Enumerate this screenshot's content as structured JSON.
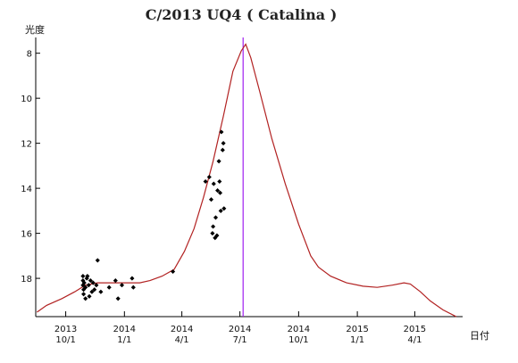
{
  "chart_data": {
    "type": "scatter",
    "title": "C/2013 UQ4 ( Catalina )",
    "ylabel": "光度",
    "xlabel": "日付",
    "y_inverted": true,
    "ylim": [
      19.7,
      7.3
    ],
    "xlim": [
      "2013-08-15",
      "2015-06-15"
    ],
    "y_ticks": [
      8,
      10,
      12,
      14,
      16,
      18
    ],
    "x_ticks": [
      {
        "date": "2013-10-01",
        "year": "2013",
        "md": "10/1"
      },
      {
        "date": "2014-01-01",
        "year": "2014",
        "md": "1/1"
      },
      {
        "date": "2014-04-01",
        "year": "2014",
        "md": "4/1"
      },
      {
        "date": "2014-07-01",
        "year": "2014",
        "md": "7/1"
      },
      {
        "date": "2014-10-01",
        "year": "2014",
        "md": "10/1"
      },
      {
        "date": "2015-01-01",
        "year": "2015",
        "md": "1/1"
      },
      {
        "date": "2015-04-01",
        "year": "2015",
        "md": "4/1"
      }
    ],
    "perihelion_marker": "2014-07-06",
    "series": [
      {
        "kind": "observations",
        "points": [
          {
            "x": "2013-10-28",
            "y": 17.9
          },
          {
            "x": "2013-10-28",
            "y": 18.1
          },
          {
            "x": "2013-10-28",
            "y": 18.3
          },
          {
            "x": "2013-10-29",
            "y": 18.5
          },
          {
            "x": "2013-10-29",
            "y": 18.7
          },
          {
            "x": "2013-10-30",
            "y": 18.2
          },
          {
            "x": "2013-11-01",
            "y": 18.4
          },
          {
            "x": "2013-11-01",
            "y": 18.9
          },
          {
            "x": "2013-11-03",
            "y": 18.0
          },
          {
            "x": "2013-11-04",
            "y": 17.9
          },
          {
            "x": "2013-11-06",
            "y": 18.3
          },
          {
            "x": "2013-11-07",
            "y": 18.8
          },
          {
            "x": "2013-11-09",
            "y": 18.1
          },
          {
            "x": "2013-11-11",
            "y": 18.6
          },
          {
            "x": "2013-11-13",
            "y": 18.2
          },
          {
            "x": "2013-11-15",
            "y": 18.5
          },
          {
            "x": "2013-11-18",
            "y": 18.3
          },
          {
            "x": "2013-11-20",
            "y": 17.2
          },
          {
            "x": "2013-11-25",
            "y": 18.6
          },
          {
            "x": "2013-12-08",
            "y": 18.4
          },
          {
            "x": "2013-12-18",
            "y": 18.1
          },
          {
            "x": "2013-12-22",
            "y": 18.9
          },
          {
            "x": "2013-12-28",
            "y": 18.3
          },
          {
            "x": "2014-01-13",
            "y": 18.0
          },
          {
            "x": "2014-01-15",
            "y": 18.4
          },
          {
            "x": "2014-03-18",
            "y": 17.7
          },
          {
            "x": "2014-05-08",
            "y": 13.7
          },
          {
            "x": "2014-05-14",
            "y": 13.5
          },
          {
            "x": "2014-05-17",
            "y": 14.5
          },
          {
            "x": "2014-05-19",
            "y": 16.0
          },
          {
            "x": "2014-05-20",
            "y": 15.7
          },
          {
            "x": "2014-05-21",
            "y": 13.8
          },
          {
            "x": "2014-05-23",
            "y": 16.2
          },
          {
            "x": "2014-05-24",
            "y": 15.3
          },
          {
            "x": "2014-05-26",
            "y": 16.1
          },
          {
            "x": "2014-05-27",
            "y": 14.1
          },
          {
            "x": "2014-05-29",
            "y": 12.8
          },
          {
            "x": "2014-05-30",
            "y": 13.7
          },
          {
            "x": "2014-05-31",
            "y": 14.2
          },
          {
            "x": "2014-06-01",
            "y": 15.0
          },
          {
            "x": "2014-06-02",
            "y": 11.5
          },
          {
            "x": "2014-06-04",
            "y": 12.3
          },
          {
            "x": "2014-06-05",
            "y": 12.0
          },
          {
            "x": "2014-06-06",
            "y": 14.9
          }
        ]
      },
      {
        "kind": "prediction_curve",
        "points": [
          {
            "x": "2013-08-17",
            "y": 19.5
          },
          {
            "x": "2013-09-01",
            "y": 19.2
          },
          {
            "x": "2013-09-25",
            "y": 18.9
          },
          {
            "x": "2013-10-15",
            "y": 18.6
          },
          {
            "x": "2013-11-01",
            "y": 18.3
          },
          {
            "x": "2013-11-20",
            "y": 18.2
          },
          {
            "x": "2013-12-15",
            "y": 18.2
          },
          {
            "x": "2014-01-05",
            "y": 18.2
          },
          {
            "x": "2014-01-25",
            "y": 18.2
          },
          {
            "x": "2014-02-10",
            "y": 18.1
          },
          {
            "x": "2014-03-01",
            "y": 17.9
          },
          {
            "x": "2014-03-20",
            "y": 17.6
          },
          {
            "x": "2014-04-05",
            "y": 16.8
          },
          {
            "x": "2014-04-20",
            "y": 15.8
          },
          {
            "x": "2014-05-05",
            "y": 14.4
          },
          {
            "x": "2014-05-20",
            "y": 12.8
          },
          {
            "x": "2014-06-05",
            "y": 10.8
          },
          {
            "x": "2014-06-20",
            "y": 8.8
          },
          {
            "x": "2014-07-03",
            "y": 7.9
          },
          {
            "x": "2014-07-10",
            "y": 7.6
          },
          {
            "x": "2014-07-18",
            "y": 8.2
          },
          {
            "x": "2014-08-01",
            "y": 9.7
          },
          {
            "x": "2014-08-20",
            "y": 11.8
          },
          {
            "x": "2014-09-10",
            "y": 13.8
          },
          {
            "x": "2014-10-01",
            "y": 15.6
          },
          {
            "x": "2014-10-20",
            "y": 17.0
          },
          {
            "x": "2014-11-01",
            "y": 17.5
          },
          {
            "x": "2014-11-20",
            "y": 17.9
          },
          {
            "x": "2014-12-15",
            "y": 18.2
          },
          {
            "x": "2015-01-10",
            "y": 18.35
          },
          {
            "x": "2015-02-01",
            "y": 18.4
          },
          {
            "x": "2015-02-25",
            "y": 18.3
          },
          {
            "x": "2015-03-15",
            "y": 18.2
          },
          {
            "x": "2015-03-25",
            "y": 18.25
          },
          {
            "x": "2015-04-10",
            "y": 18.6
          },
          {
            "x": "2015-04-25",
            "y": 19.0
          },
          {
            "x": "2015-05-15",
            "y": 19.4
          },
          {
            "x": "2015-06-05",
            "y": 19.7
          }
        ]
      }
    ],
    "colors": {
      "curve": "#b22222",
      "points": "#000000",
      "marker_line": "#a020f0",
      "axis": "#000000"
    }
  }
}
